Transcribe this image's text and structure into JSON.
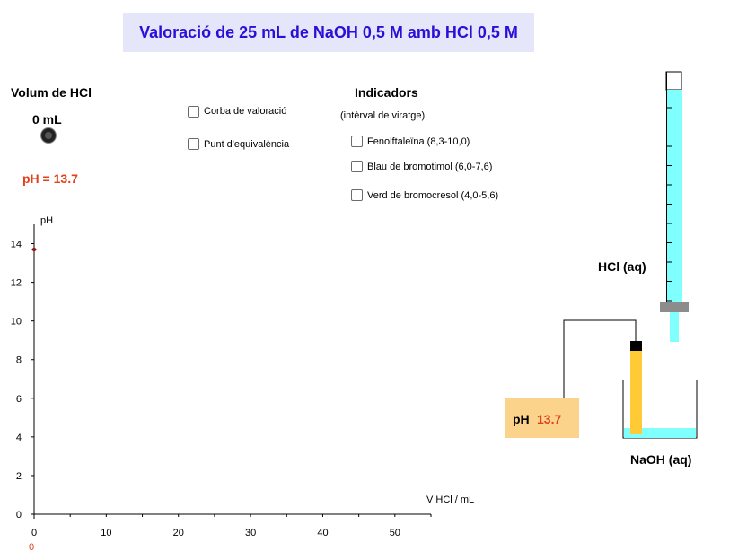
{
  "title": "Valoració de 25 mL de NaOH 0,5 M amb HCl 0,5 M",
  "volume_panel": {
    "heading": "Volum de HCl",
    "value_text": "0 mL",
    "slider_value_ml": 0,
    "slider_max_ml": 50,
    "ph_text": "pH = 13.7"
  },
  "options": {
    "curve_label": "Corba de valoració",
    "equivalence_label": "Punt d'equivalència"
  },
  "indicators": {
    "heading": "Indicadors",
    "subheading": "(intèrval de viratge)",
    "items": [
      {
        "label": "Fenolftaleïna (8,3-10,0)"
      },
      {
        "label": "Blau de bromotimol (6,0-7,6)"
      },
      {
        "label": "Verd de bromocresol (4,0-5,6)"
      }
    ]
  },
  "apparatus": {
    "burette_label": "HCl (aq)",
    "beaker_label": "NaOH (aq)",
    "meter_label": "pH",
    "meter_value": "13.7",
    "liquid_color": "#80ffff",
    "probe_color": "#fecb36"
  },
  "chart_data": {
    "type": "scatter",
    "ylabel": "pH",
    "xlabel": "V HCl / mL",
    "xlim": [
      0,
      55
    ],
    "ylim": [
      0,
      15
    ],
    "x_ticks": [
      0,
      10,
      20,
      30,
      40,
      50
    ],
    "y_ticks": [
      0,
      2,
      4,
      6,
      8,
      10,
      12,
      14
    ],
    "points": [
      {
        "x": 0,
        "y": 13.7
      }
    ],
    "current_x_label": "0",
    "point_color": "#8b1a1a"
  }
}
